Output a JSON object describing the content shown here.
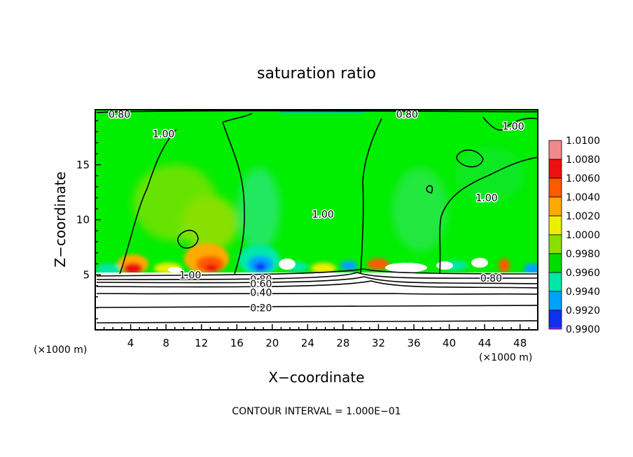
{
  "chart_data": {
    "type": "heatmap",
    "title": "saturation ratio",
    "xlabel": "X−coordinate",
    "ylabel": "Z−coordinate",
    "x_unit": "(×1000 m)",
    "y_unit": "(×1000 m)",
    "xlim": [
      0,
      50
    ],
    "ylim": [
      0,
      20
    ],
    "x_ticks": [
      4,
      8,
      12,
      16,
      20,
      24,
      28,
      32,
      36,
      40,
      44,
      48
    ],
    "y_ticks": [
      5,
      10,
      15
    ],
    "colorbar": {
      "levels": [
        "1.0100",
        "1.0080",
        "1.0060",
        "1.0040",
        "1.0020",
        "1.0000",
        "0.9980",
        "0.9960",
        "0.9940",
        "0.9920",
        "0.9900"
      ],
      "colors": [
        "#f08a8a",
        "#ee1010",
        "#ff5a00",
        "#ffaa00",
        "#eeee00",
        "#88e000",
        "#00dd00",
        "#00e8a8",
        "#00a0ff",
        "#1030ee",
        "#7020c0"
      ]
    },
    "contour_interval_text": "CONTOUR INTERVAL = 1.000E−01",
    "contour_labels": [
      {
        "text": "0.80",
        "x": 1.5,
        "z": 19.6
      },
      {
        "text": "0.80",
        "x": 34.0,
        "z": 19.6
      },
      {
        "text": "1.00",
        "x": 6.5,
        "z": 17.8
      },
      {
        "text": "1.00",
        "x": 46.0,
        "z": 18.5
      },
      {
        "text": "1.00",
        "x": 24.5,
        "z": 10.5
      },
      {
        "text": "1.00",
        "x": 43.0,
        "z": 12.0
      },
      {
        "text": "1.00",
        "x": 9.5,
        "z": 5.0
      },
      {
        "text": "0.80",
        "x": 43.5,
        "z": 4.7
      },
      {
        "text": "0.80",
        "x": 17.5,
        "z": 4.6
      },
      {
        "text": "0.60",
        "x": 17.5,
        "z": 4.2
      },
      {
        "text": "0.40",
        "x": 17.5,
        "z": 3.4
      },
      {
        "text": "0.20",
        "x": 17.5,
        "z": 2.0
      }
    ]
  }
}
